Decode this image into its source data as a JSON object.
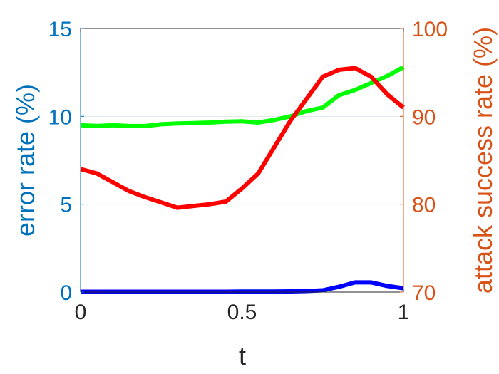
{
  "chart_data": {
    "type": "line",
    "xlabel": "t",
    "ylabel_left": "error rate (%)",
    "ylabel_right": "attack success rate (%)",
    "xlim": [
      0,
      1
    ],
    "ylim_left": [
      0,
      15
    ],
    "ylim_right": [
      70,
      100
    ],
    "x_ticks": [
      "0",
      "0.5",
      "1"
    ],
    "y_left_ticks": [
      "0",
      "5",
      "10",
      "15"
    ],
    "y_right_ticks": [
      "70",
      "80",
      "90",
      "100"
    ],
    "grid": true,
    "x": [
      0,
      0.05,
      0.1,
      0.15,
      0.2,
      0.25,
      0.3,
      0.35,
      0.4,
      0.45,
      0.5,
      0.55,
      0.6,
      0.65,
      0.7,
      0.75,
      0.8,
      0.85,
      0.9,
      0.95,
      1.0
    ],
    "series": [
      {
        "axis": "left",
        "color": "#00ff00",
        "values": [
          9.5,
          9.45,
          9.5,
          9.45,
          9.45,
          9.55,
          9.6,
          9.62,
          9.65,
          9.7,
          9.72,
          9.65,
          9.8,
          10.0,
          10.3,
          10.5,
          11.2,
          11.5,
          11.9,
          12.3,
          12.8
        ]
      },
      {
        "axis": "left",
        "color": "#0000ff",
        "values": [
          0.02,
          0.02,
          0.02,
          0.02,
          0.02,
          0.02,
          0.02,
          0.02,
          0.02,
          0.02,
          0.03,
          0.03,
          0.03,
          0.04,
          0.06,
          0.1,
          0.3,
          0.55,
          0.55,
          0.35,
          0.22
        ]
      },
      {
        "axis": "right",
        "color": "#ff0000",
        "values": [
          84.0,
          83.5,
          82.5,
          81.5,
          80.8,
          80.2,
          79.6,
          79.8,
          80.0,
          80.3,
          81.8,
          83.5,
          86.5,
          89.5,
          92.0,
          94.5,
          95.3,
          95.5,
          94.5,
          92.5,
          91.0
        ]
      }
    ]
  }
}
